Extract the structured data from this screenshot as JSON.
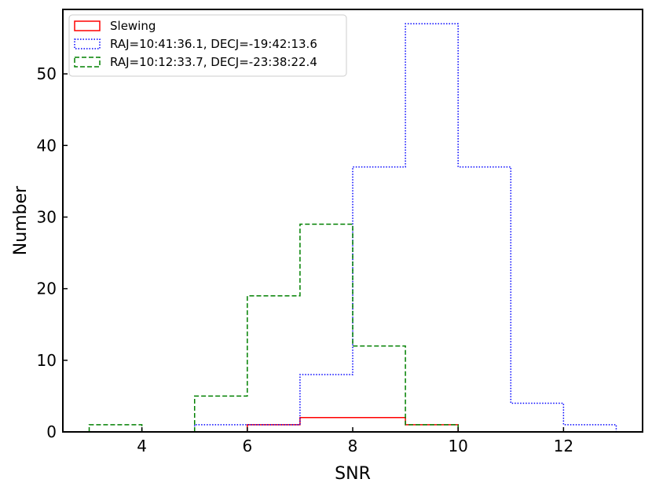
{
  "chart_data": {
    "type": "histogram",
    "xlabel": "SNR",
    "ylabel": "Number",
    "xlim": [
      2.5,
      13.5
    ],
    "ylim": [
      0,
      59
    ],
    "xticks": [
      4,
      6,
      8,
      10,
      12
    ],
    "yticks": [
      0,
      10,
      20,
      30,
      40,
      50
    ],
    "legend_position": "top-left",
    "grid": false,
    "series": [
      {
        "name": "Slewing",
        "color": "#ff0000",
        "line_style": "solid",
        "bin_edges": [
          6,
          7,
          8,
          9,
          10
        ],
        "counts": [
          1,
          2,
          2,
          1
        ]
      },
      {
        "name": "RAJ=10:41:36.1, DECJ=-19:42:13.6",
        "color": "#0000ff",
        "line_style": "dotted",
        "bin_edges": [
          5,
          6,
          7,
          8,
          9,
          10,
          11,
          12,
          13
        ],
        "counts": [
          1,
          1,
          8,
          37,
          57,
          37,
          4,
          1
        ]
      },
      {
        "name": "RAJ=10:12:33.7, DECJ=-23:38:22.4",
        "color": "#008000",
        "line_style": "dashed",
        "bin_edges": [
          3,
          4,
          5,
          6,
          7,
          8,
          9,
          10
        ],
        "counts": [
          1,
          0,
          5,
          19,
          29,
          12,
          1
        ]
      }
    ]
  }
}
